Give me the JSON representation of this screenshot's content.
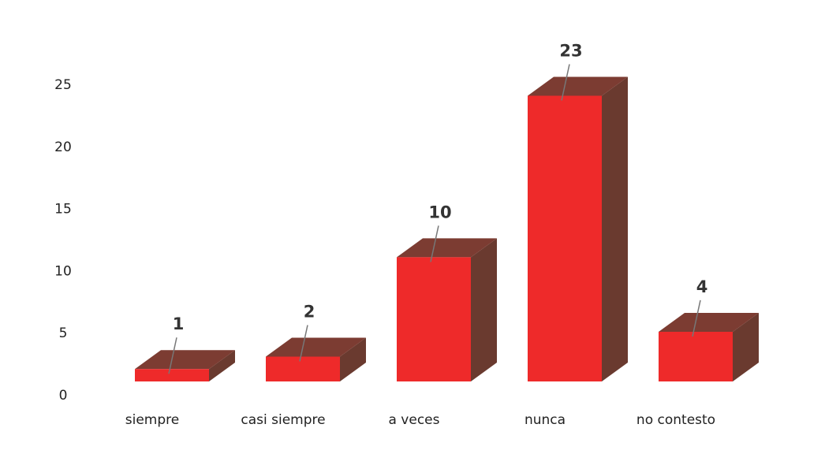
{
  "chart_data": {
    "type": "bar3d",
    "categories": [
      "siempre",
      "casi siempre",
      "a veces",
      "nunca",
      "no contesto"
    ],
    "values": [
      1,
      2,
      10,
      23,
      4
    ],
    "color": "#ee2a2a",
    "ylim": [
      0,
      25
    ],
    "yticks": [
      0,
      5,
      10,
      15,
      20,
      25
    ],
    "grid": false
  }
}
